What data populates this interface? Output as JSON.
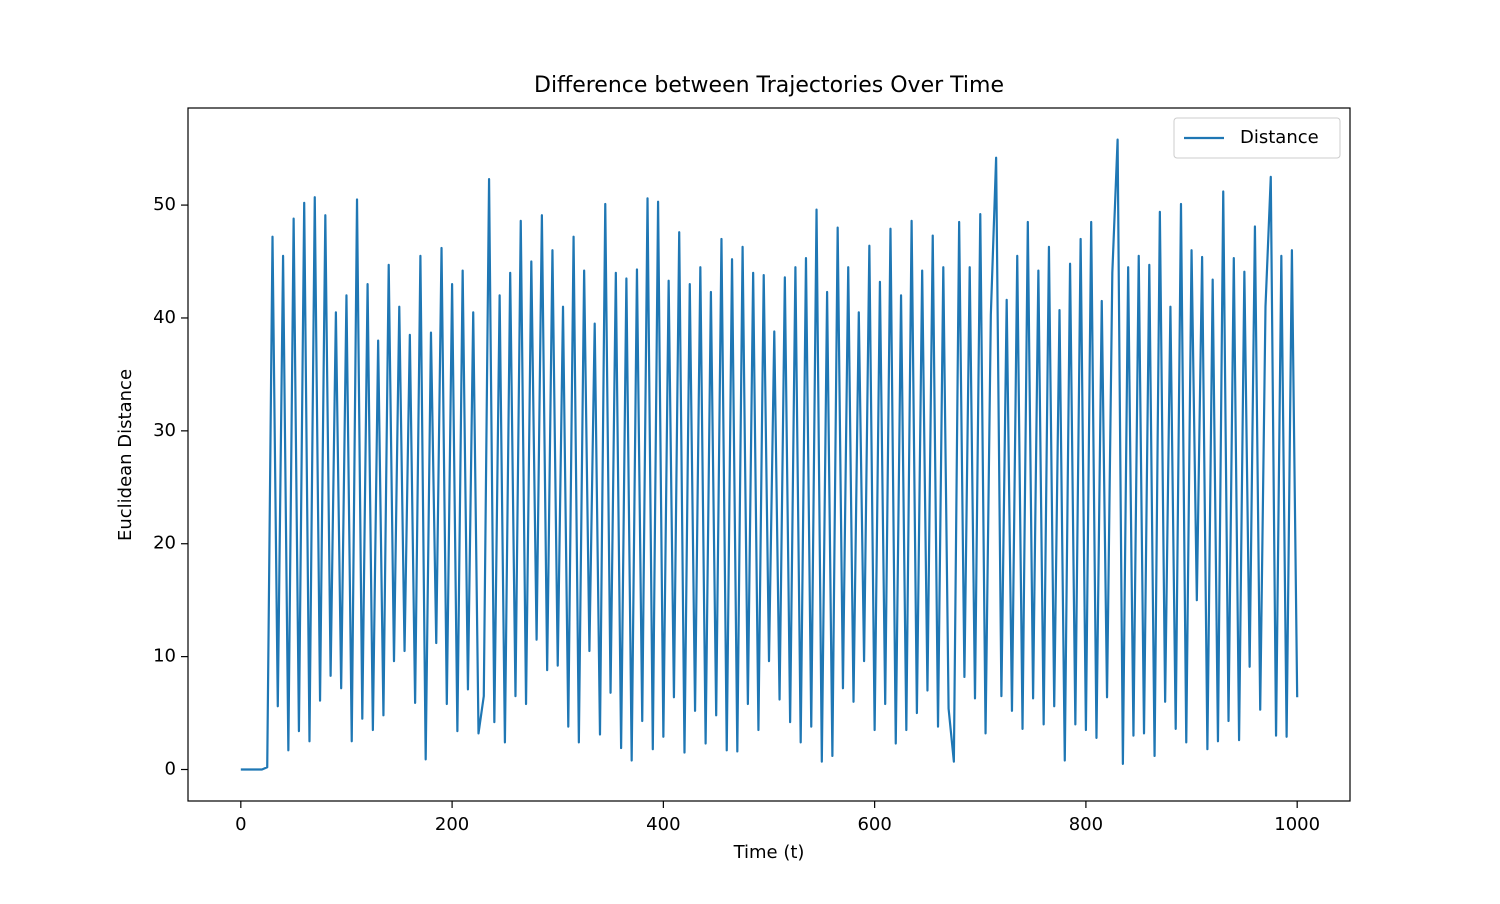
{
  "chart_data": {
    "type": "line",
    "title": "Difference between Trajectories Over Time",
    "x_label": "Time (t)",
    "y_label": "Euclidean Distance",
    "x": [
      0,
      5,
      10,
      15,
      20,
      25,
      30,
      35,
      40,
      45,
      50,
      55,
      60,
      65,
      70,
      75,
      80,
      85,
      90,
      95,
      100,
      105,
      110,
      115,
      120,
      125,
      130,
      135,
      140,
      145,
      150,
      155,
      160,
      165,
      170,
      175,
      180,
      185,
      190,
      195,
      200,
      205,
      210,
      215,
      220,
      225,
      230,
      235,
      240,
      245,
      250,
      255,
      260,
      265,
      270,
      275,
      280,
      285,
      290,
      295,
      300,
      305,
      310,
      315,
      320,
      325,
      330,
      335,
      340,
      345,
      350,
      355,
      360,
      365,
      370,
      375,
      380,
      385,
      390,
      395,
      400,
      405,
      410,
      415,
      420,
      425,
      430,
      435,
      440,
      445,
      450,
      455,
      460,
      465,
      470,
      475,
      480,
      485,
      490,
      495,
      500,
      505,
      510,
      515,
      520,
      525,
      530,
      535,
      540,
      545,
      550,
      555,
      560,
      565,
      570,
      575,
      580,
      585,
      590,
      595,
      600,
      605,
      610,
      615,
      620,
      625,
      630,
      635,
      640,
      645,
      650,
      655,
      660,
      665,
      670,
      675,
      680,
      685,
      690,
      695,
      700,
      705,
      710,
      715,
      720,
      725,
      730,
      735,
      740,
      745,
      750,
      755,
      760,
      765,
      770,
      775,
      780,
      785,
      790,
      795,
      800,
      805,
      810,
      815,
      820,
      825,
      830,
      835,
      840,
      845,
      850,
      855,
      860,
      865,
      870,
      875,
      880,
      885,
      890,
      895,
      900,
      905,
      910,
      915,
      920,
      925,
      930,
      935,
      940,
      945,
      950,
      955,
      960,
      965,
      970,
      975,
      980,
      985,
      990,
      995,
      1000
    ],
    "series": [
      {
        "name": "Distance",
        "color": "#1f77b4",
        "values": [
          0,
          0,
          0,
          0,
          0,
          0.2,
          47.2,
          5.6,
          45.5,
          1.7,
          48.8,
          3.4,
          50.2,
          2.5,
          50.7,
          6.1,
          49.1,
          8.3,
          40.5,
          7.2,
          42.0,
          2.5,
          50.5,
          4.5,
          43.0,
          3.5,
          38.0,
          4.8,
          44.7,
          9.6,
          41.0,
          10.5,
          38.5,
          5.9,
          45.5,
          0.9,
          38.7,
          11.2,
          46.2,
          5.8,
          43.0,
          3.4,
          44.2,
          7.1,
          40.5,
          3.2,
          6.5,
          52.3,
          4.2,
          42.0,
          2.4,
          44.0,
          6.5,
          48.6,
          5.8,
          45.0,
          11.5,
          49.1,
          8.8,
          46.0,
          9.2,
          41.0,
          3.8,
          47.2,
          2.4,
          44.2,
          10.5,
          39.5,
          3.1,
          50.1,
          6.8,
          44.0,
          1.9,
          43.5,
          0.8,
          44.3,
          4.3,
          50.6,
          1.8,
          50.3,
          2.9,
          43.3,
          6.4,
          47.6,
          1.5,
          43.0,
          5.2,
          44.5,
          2.3,
          42.3,
          4.8,
          47.0,
          1.7,
          45.2,
          1.6,
          46.3,
          5.8,
          44.0,
          3.5,
          43.8,
          9.6,
          38.8,
          6.2,
          43.6,
          4.2,
          44.5,
          2.4,
          45.3,
          3.8,
          49.6,
          0.7,
          42.3,
          1.2,
          48.0,
          7.2,
          44.5,
          6.0,
          40.5,
          9.6,
          46.4,
          3.5,
          43.2,
          5.8,
          47.9,
          2.3,
          42.0,
          3.5,
          48.6,
          5.0,
          44.2,
          7.0,
          47.3,
          3.8,
          44.5,
          5.4,
          0.7,
          48.5,
          8.2,
          44.5,
          6.3,
          49.2,
          3.2,
          40.3,
          54.2,
          6.5,
          41.6,
          5.2,
          45.5,
          3.6,
          48.5,
          6.3,
          44.2,
          4.0,
          46.3,
          5.6,
          40.7,
          0.8,
          44.8,
          4.0,
          47.0,
          3.5,
          48.5,
          2.8,
          41.5,
          6.4,
          44.0,
          55.8,
          0.5,
          44.5,
          3.0,
          45.5,
          3.2,
          44.7,
          1.2,
          49.4,
          6.0,
          41.0,
          3.6,
          50.1,
          2.4,
          46.0,
          15.0,
          45.4,
          1.8,
          43.4,
          2.5,
          51.2,
          4.3,
          45.3,
          2.6,
          44.1,
          9.1,
          48.1,
          5.3,
          41.0,
          52.5,
          3.0,
          45.5,
          2.9,
          46.0,
          6.4
        ]
      }
    ],
    "xlim": [
      -50,
      1050
    ],
    "ylim": [
      -2.79,
      58.6
    ],
    "xticks": [
      0,
      200,
      400,
      600,
      800,
      1000
    ],
    "yticks": [
      0,
      10,
      20,
      30,
      40,
      50
    ],
    "legend": "upper right"
  }
}
